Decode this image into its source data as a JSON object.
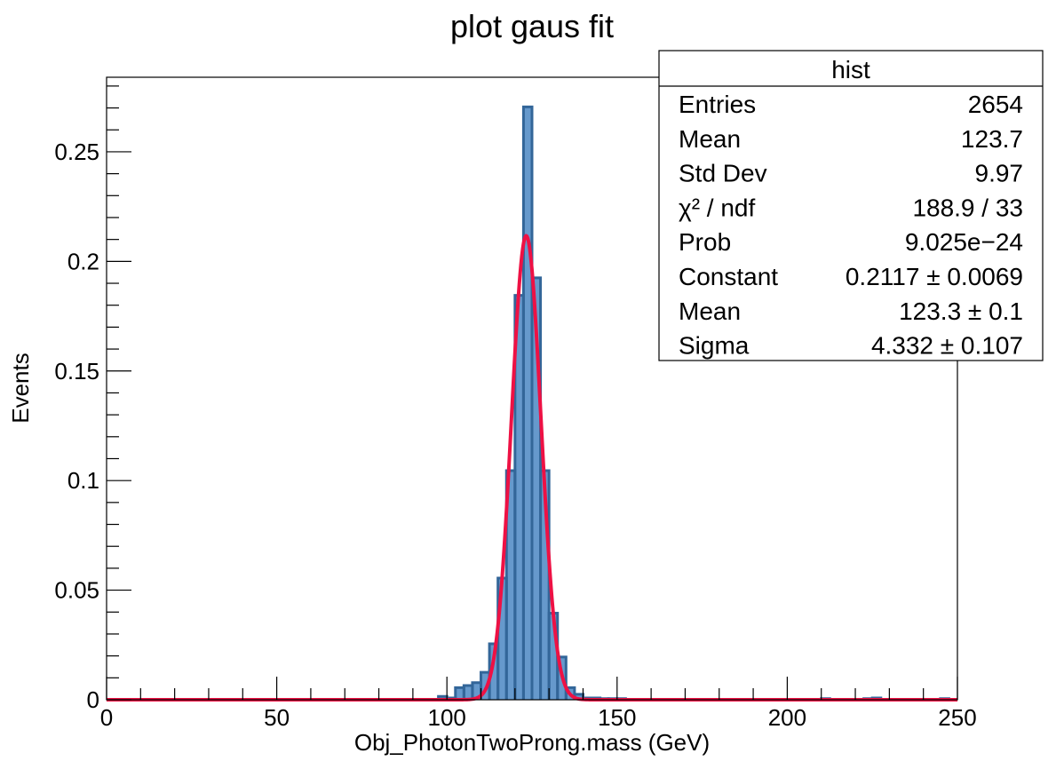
{
  "chart_data": {
    "type": "bar",
    "title": "plot gaus fit",
    "xlabel": "Obj_PhotonTwoProng.mass (GeV)",
    "ylabel": "Events",
    "xlim": [
      0,
      250
    ],
    "ylim": [
      0,
      0.284
    ],
    "bin_width": 2.5,
    "x_ticks": [
      {
        "value": 0,
        "label": "0"
      },
      {
        "value": 50,
        "label": "50"
      },
      {
        "value": 100,
        "label": "100"
      },
      {
        "value": 150,
        "label": "150"
      },
      {
        "value": 200,
        "label": "200"
      },
      {
        "value": 250,
        "label": "250"
      }
    ],
    "y_ticks": [
      {
        "value": 0,
        "label": "0"
      },
      {
        "value": 0.05,
        "label": "0.05"
      },
      {
        "value": 0.1,
        "label": "0.1"
      },
      {
        "value": 0.15,
        "label": "0.15"
      },
      {
        "value": 0.2,
        "label": "0.2"
      },
      {
        "value": 0.25,
        "label": "0.25"
      }
    ],
    "histogram": {
      "bin_edges_start": [
        97.5,
        100,
        102.5,
        105,
        107.5,
        110,
        112.5,
        115,
        117.5,
        120,
        122.5,
        125,
        127.5,
        130,
        132.5,
        135,
        137.5,
        140,
        142.5,
        145,
        147.5,
        150,
        210,
        222.5,
        225,
        245
      ],
      "values": [
        0.0015,
        0.0008,
        0.0055,
        0.0065,
        0.0078,
        0.0125,
        0.0255,
        0.0555,
        0.1045,
        0.1845,
        0.2705,
        0.1925,
        0.1045,
        0.0395,
        0.0195,
        0.0055,
        0.0025,
        0.0008,
        0.0008,
        0.0005,
        0.0005,
        0.0005,
        0.0005,
        0.0005,
        0.0008,
        0.0005
      ],
      "fill_color": "#6699cc",
      "line_color": "#336699"
    },
    "fit": {
      "function": "gaus",
      "constant": 0.2117,
      "mean": 123.3,
      "sigma": 4.332,
      "color": "#ee1144"
    },
    "stats": {
      "title": "hist",
      "rows": [
        {
          "label": "Entries",
          "value": "2654"
        },
        {
          "label": "Mean",
          "value": "123.7"
        },
        {
          "label": "Std Dev",
          "value": "9.97"
        },
        {
          "label": "χ² / ndf",
          "value": "188.9 / 33"
        },
        {
          "label": "Prob",
          "value": "9.025e−24"
        },
        {
          "label": "Constant",
          "value": "0.2117 ± 0.0069"
        },
        {
          "label": "Mean",
          "value": "123.3 ± 0.1"
        },
        {
          "label": "Sigma",
          "value": "4.332 ± 0.107"
        }
      ]
    },
    "grid": false,
    "legend_placement": "top-right"
  }
}
